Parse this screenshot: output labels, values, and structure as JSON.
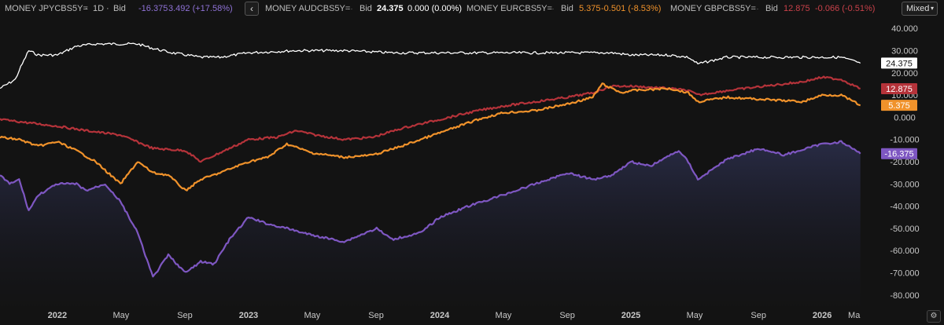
{
  "legend": {
    "series": [
      {
        "ticker": "MONEY JPYCBS5Y=",
        "interval": "1D",
        "field": "Bid",
        "value": "-16.375",
        "change": "3.492 (+17.58%)",
        "color": "#7e57c2"
      },
      {
        "ticker": "MONEY AUDCBS5Y=",
        "interval": "",
        "field": "Bid",
        "value": "24.375",
        "change": "0.000 (0.00%)",
        "color": "#ffffff"
      },
      {
        "ticker": "MONEY EURCBS5Y=",
        "interval": "",
        "field": "Bid",
        "value": "5.375",
        "change": "-0.501 (-8.53%)",
        "color": "#f0922b"
      },
      {
        "ticker": "MONEY GBPCBS5Y=",
        "interval": "",
        "field": "Bid",
        "value": "12.875",
        "change": "-0.066 (-0.51%)",
        "color": "#b5333a"
      }
    ],
    "separator": "·",
    "collapse_icon": "chevron-left-icon",
    "mode": "Mixed"
  },
  "settings_icon": "gear-icon",
  "chart_data": {
    "type": "line",
    "ylim": [
      -85,
      45
    ],
    "y_ticks": [
      "40.000",
      "30.000",
      "20.000",
      "10.000",
      "0.000",
      "-10.000",
      "-20.000",
      "-30.000",
      "-40.000",
      "-50.000",
      "-60.000",
      "-70.000",
      "-80.000"
    ],
    "y_tick_values": [
      40,
      30,
      20,
      10,
      0,
      -10,
      -20,
      -30,
      -40,
      -50,
      -60,
      -70,
      -80
    ],
    "x_ticks": [
      "2022",
      "May",
      "Sep",
      "2023",
      "May",
      "Sep",
      "2024",
      "May",
      "Sep",
      "2025",
      "May",
      "Sep",
      "2026",
      "Ma"
    ],
    "x_tick_values": [
      2022.0,
      2022.333,
      2022.667,
      2023.0,
      2023.333,
      2023.667,
      2024.0,
      2024.333,
      2024.667,
      2025.0,
      2025.333,
      2025.667,
      2026.0,
      2026.167
    ],
    "xlim": [
      2021.7,
      2026.3
    ],
    "series": [
      {
        "key": "aud",
        "color": "#ffffff",
        "last_label": "24.375",
        "x": [
          2021.7,
          2021.78,
          2021.8,
          2021.85,
          2021.9,
          2022.0,
          2022.1,
          2022.2,
          2022.3,
          2022.42,
          2022.5,
          2022.6,
          2022.75,
          2022.85,
          2023.0,
          2023.25,
          2023.5,
          2023.75,
          2024.0,
          2024.25,
          2024.5,
          2024.75,
          2024.9,
          2025.0,
          2025.2,
          2025.3,
          2025.35,
          2025.5,
          2025.75,
          2026.0,
          2026.1,
          2026.2
        ],
        "y": [
          13,
          17,
          21,
          30,
          28,
          28,
          32,
          33,
          33,
          33,
          31,
          29,
          27,
          27,
          29,
          30,
          30,
          29,
          29,
          29,
          29,
          29,
          29,
          28,
          28,
          27,
          24,
          27,
          27,
          27,
          27,
          24.375
        ]
      },
      {
        "key": "gbp",
        "color": "#b5333a",
        "last_label": "12.875",
        "x": [
          2021.7,
          2021.8,
          2021.9,
          2022.0,
          2022.15,
          2022.33,
          2022.5,
          2022.67,
          2022.75,
          2022.9,
          2023.0,
          2023.15,
          2023.25,
          2023.35,
          2023.5,
          2023.65,
          2023.8,
          2024.0,
          2024.2,
          2024.33,
          2024.5,
          2024.67,
          2024.8,
          2024.9,
          2025.0,
          2025.2,
          2025.3,
          2025.35,
          2025.5,
          2025.7,
          2025.9,
          2026.0,
          2026.1,
          2026.2
        ],
        "y": [
          -1,
          -2,
          -3,
          -4,
          -6,
          -8,
          -14,
          -15,
          -20,
          -14,
          -10,
          -9,
          -6,
          -8,
          -10,
          -9,
          -5,
          -1,
          3,
          5,
          7,
          9,
          11,
          14,
          14,
          13,
          12,
          10,
          12,
          14,
          16,
          18,
          17,
          12.875
        ]
      },
      {
        "key": "eur",
        "color": "#f0922b",
        "last_label": "5.375",
        "x": [
          2021.7,
          2021.8,
          2021.9,
          2022.0,
          2022.1,
          2022.2,
          2022.33,
          2022.42,
          2022.5,
          2022.58,
          2022.67,
          2022.75,
          2022.85,
          2023.0,
          2023.1,
          2023.2,
          2023.33,
          2023.5,
          2023.65,
          2023.8,
          2024.0,
          2024.2,
          2024.33,
          2024.5,
          2024.67,
          2024.8,
          2024.85,
          2024.95,
          2025.0,
          2025.2,
          2025.3,
          2025.35,
          2025.5,
          2025.7,
          2025.9,
          2026.0,
          2026.1,
          2026.2
        ],
        "y": [
          -9,
          -10,
          -13,
          -11,
          -15,
          -20,
          -30,
          -20,
          -25,
          -26,
          -33,
          -28,
          -25,
          -20,
          -18,
          -12,
          -16,
          -18,
          -17,
          -13,
          -7,
          -1,
          2,
          3,
          6,
          9,
          15,
          11,
          12,
          13,
          11,
          7,
          9,
          8,
          7,
          10,
          10,
          5.375
        ]
      },
      {
        "key": "jpy",
        "color": "#7e57c2",
        "last_label": "-16.375",
        "fill": true,
        "x": [
          2021.7,
          2021.75,
          2021.8,
          2021.85,
          2021.9,
          2022.0,
          2022.1,
          2022.15,
          2022.25,
          2022.33,
          2022.42,
          2022.5,
          2022.58,
          2022.67,
          2022.75,
          2022.82,
          2022.9,
          2023.0,
          2023.1,
          2023.2,
          2023.33,
          2023.5,
          2023.67,
          2023.75,
          2023.9,
          2024.0,
          2024.15,
          2024.33,
          2024.5,
          2024.67,
          2024.8,
          2024.9,
          2025.0,
          2025.1,
          2025.25,
          2025.3,
          2025.35,
          2025.5,
          2025.67,
          2025.8,
          2026.0,
          2026.1,
          2026.2
        ],
        "y": [
          -26,
          -30,
          -28,
          -42,
          -35,
          -30,
          -30,
          -33,
          -30,
          -38,
          -52,
          -72,
          -62,
          -70,
          -65,
          -66,
          -55,
          -45,
          -48,
          -50,
          -53,
          -56,
          -50,
          -55,
          -52,
          -45,
          -40,
          -35,
          -30,
          -25,
          -28,
          -26,
          -20,
          -22,
          -15,
          -20,
          -28,
          -19,
          -14,
          -17,
          -12,
          -11,
          -16.375
        ]
      }
    ]
  }
}
